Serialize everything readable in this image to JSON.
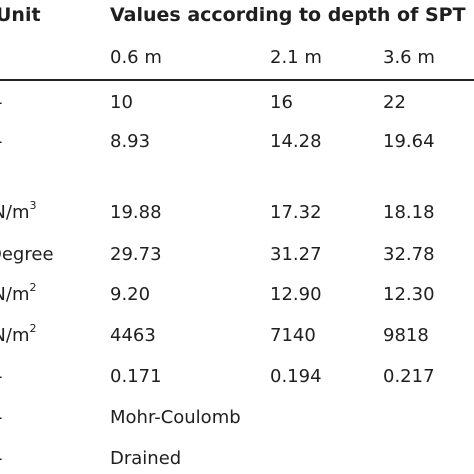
{
  "table": {
    "header": {
      "unit": "Unit",
      "values": "Values according to depth of SPT"
    },
    "depths": [
      "0.6 m",
      "2.1 m",
      "3.6 m"
    ],
    "rows": [
      {
        "unit": "-",
        "unit_sup": "",
        "values": [
          "10",
          "16",
          "22"
        ]
      },
      {
        "unit": "-",
        "unit_sup": "",
        "values": [
          "8.93",
          "14.28",
          "19.64"
        ]
      },
      {
        "unit": "kN/m",
        "unit_sup": "3",
        "values": [
          "19.88",
          "17.32",
          "18.18"
        ]
      },
      {
        "unit": "Degree",
        "unit_sup": "",
        "values": [
          "29.73",
          "31.27",
          "32.78"
        ]
      },
      {
        "unit": "kN/m",
        "unit_sup": "2",
        "values": [
          "9.20",
          "12.90",
          "12.30"
        ]
      },
      {
        "unit": "kN/m",
        "unit_sup": "2",
        "values": [
          "4463",
          "7140",
          "9818"
        ]
      },
      {
        "unit": "-",
        "unit_sup": "",
        "values": [
          "0.171",
          "0.194",
          "0.217"
        ]
      },
      {
        "unit": "-",
        "unit_sup": "",
        "values": [
          "Mohr-Coulomb"
        ]
      },
      {
        "unit": "-",
        "unit_sup": "",
        "values": [
          "Drained"
        ]
      }
    ]
  }
}
